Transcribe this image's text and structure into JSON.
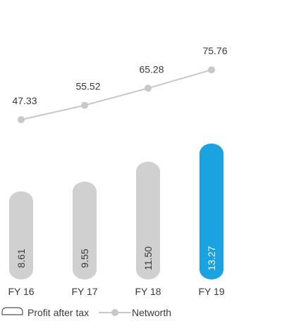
{
  "chart_data": {
    "type": "bar",
    "categories": [
      "FY 16",
      "FY 17",
      "FY 18",
      "FY 19"
    ],
    "series": [
      {
        "name": "Profit after tax",
        "type": "bar",
        "values": [
          8.61,
          9.55,
          11.5,
          13.27
        ],
        "value_labels": [
          "8.61",
          "9.55",
          "11.50",
          "13.27"
        ]
      },
      {
        "name": "Networth",
        "type": "line",
        "values": [
          47.33,
          55.52,
          65.28,
          75.76
        ],
        "value_labels": [
          "47.33",
          "55.52",
          "65.28",
          "75.76"
        ]
      }
    ],
    "highlight_index": 3,
    "legend": "bottom",
    "grid": false,
    "colors": {
      "bar": "#d0d0d0",
      "bar_highlight": "#1aa3e0",
      "bar_label": "#3a3a3a",
      "bar_label_highlight": "#ffffff",
      "line": "#c8c8c8",
      "marker": "#c8c8c8",
      "text": "#3a3a3a"
    }
  }
}
